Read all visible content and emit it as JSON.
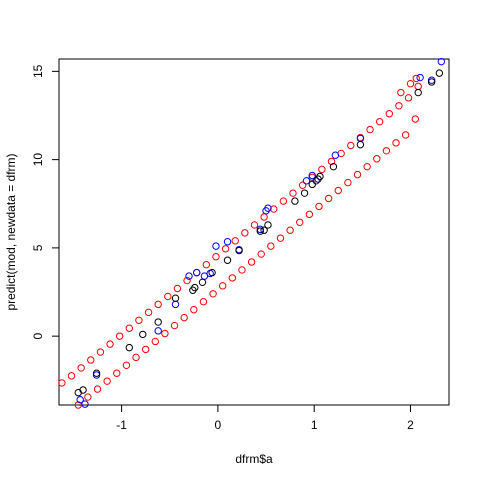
{
  "chart_data": {
    "type": "scatter",
    "title": "",
    "xlabel": "dfrm$a",
    "ylabel": "predict(mod, newdata = dfrm)",
    "xlim": [
      -1.65,
      2.4
    ],
    "ylim": [
      -3.9,
      15.7
    ],
    "xticks": [
      -1,
      0,
      1,
      2
    ],
    "yticks": [
      0,
      5,
      10,
      15
    ],
    "grid": false,
    "marker": "open-circle",
    "series": [
      {
        "color": "#ff0000",
        "points": [
          [
            -1.62,
            -2.65
          ],
          [
            -1.52,
            -2.25
          ],
          [
            -1.42,
            -1.8
          ],
          [
            -1.32,
            -1.35
          ],
          [
            -1.22,
            -0.9
          ],
          [
            -1.12,
            -0.45
          ],
          [
            -1.02,
            0.0
          ],
          [
            -0.92,
            0.45
          ],
          [
            -0.82,
            0.9
          ],
          [
            -0.72,
            1.35
          ],
          [
            -0.62,
            1.8
          ],
          [
            -0.52,
            2.25
          ],
          [
            -0.42,
            2.7
          ],
          [
            -0.32,
            3.15
          ],
          [
            -0.22,
            3.6
          ],
          [
            -0.12,
            4.05
          ],
          [
            -0.02,
            4.5
          ],
          [
            0.08,
            4.95
          ],
          [
            0.18,
            5.4
          ],
          [
            0.28,
            5.85
          ],
          [
            0.38,
            6.3
          ],
          [
            0.48,
            6.75
          ],
          [
            0.58,
            7.2
          ],
          [
            0.68,
            7.65
          ],
          [
            0.78,
            8.1
          ],
          [
            0.88,
            8.55
          ],
          [
            0.98,
            9.0
          ],
          [
            1.08,
            9.45
          ],
          [
            1.18,
            9.9
          ],
          [
            1.28,
            10.35
          ],
          [
            1.38,
            10.8
          ],
          [
            1.48,
            11.25
          ],
          [
            1.58,
            11.7
          ],
          [
            1.68,
            12.15
          ],
          [
            1.78,
            12.6
          ],
          [
            1.88,
            13.05
          ],
          [
            1.98,
            13.5
          ],
          [
            2.08,
            14.15
          ],
          [
            -1.45,
            -3.9
          ],
          [
            -1.35,
            -3.45
          ],
          [
            -1.25,
            -3.0
          ],
          [
            -1.15,
            -2.55
          ],
          [
            -1.05,
            -2.1
          ],
          [
            -0.95,
            -1.65
          ],
          [
            -0.85,
            -1.2
          ],
          [
            -0.75,
            -0.75
          ],
          [
            -0.65,
            -0.3
          ],
          [
            -0.55,
            0.15
          ],
          [
            -0.45,
            0.6
          ],
          [
            -0.35,
            1.05
          ],
          [
            -0.25,
            1.5
          ],
          [
            -0.15,
            1.95
          ],
          [
            -0.05,
            2.4
          ],
          [
            0.05,
            2.85
          ],
          [
            0.15,
            3.3
          ],
          [
            0.25,
            3.75
          ],
          [
            0.35,
            4.2
          ],
          [
            0.45,
            4.65
          ],
          [
            0.55,
            5.1
          ],
          [
            0.65,
            5.55
          ],
          [
            0.75,
            6.0
          ],
          [
            0.85,
            6.45
          ],
          [
            0.95,
            6.9
          ],
          [
            1.05,
            7.35
          ],
          [
            1.15,
            7.8
          ],
          [
            1.25,
            8.25
          ],
          [
            1.35,
            8.7
          ],
          [
            1.45,
            9.15
          ],
          [
            1.55,
            9.6
          ],
          [
            1.65,
            10.05
          ],
          [
            1.75,
            10.5
          ],
          [
            1.85,
            10.95
          ],
          [
            1.95,
            11.4
          ],
          [
            2.05,
            12.3
          ],
          [
            2.06,
            14.6
          ],
          [
            2.0,
            14.3
          ],
          [
            1.9,
            13.8
          ]
        ]
      },
      {
        "color": "#0000ff",
        "points": [
          [
            -1.43,
            -3.6
          ],
          [
            -1.38,
            -3.85
          ],
          [
            -1.26,
            -2.2
          ],
          [
            -0.62,
            0.3
          ],
          [
            -0.44,
            1.8
          ],
          [
            -0.3,
            3.4
          ],
          [
            -0.22,
            3.6
          ],
          [
            -0.14,
            3.4
          ],
          [
            -0.08,
            3.55
          ],
          [
            -0.02,
            5.1
          ],
          [
            0.1,
            5.35
          ],
          [
            0.22,
            4.9
          ],
          [
            0.44,
            6.05
          ],
          [
            0.5,
            7.1
          ],
          [
            0.52,
            7.25
          ],
          [
            0.92,
            8.8
          ],
          [
            0.98,
            9.1
          ],
          [
            1.02,
            8.8
          ],
          [
            1.22,
            10.25
          ],
          [
            1.48,
            11.2
          ],
          [
            2.1,
            14.65
          ],
          [
            2.22,
            14.5
          ],
          [
            2.32,
            15.55
          ]
        ]
      },
      {
        "color": "#000000",
        "points": [
          [
            -1.45,
            -3.2
          ],
          [
            -1.4,
            -3.05
          ],
          [
            -1.26,
            -2.1
          ],
          [
            -0.92,
            -0.65
          ],
          [
            -0.78,
            0.1
          ],
          [
            -0.62,
            0.8
          ],
          [
            -0.44,
            2.15
          ],
          [
            -0.26,
            2.6
          ],
          [
            -0.24,
            2.75
          ],
          [
            -0.16,
            3.05
          ],
          [
            -0.06,
            3.6
          ],
          [
            0.1,
            4.3
          ],
          [
            0.22,
            4.85
          ],
          [
            0.44,
            5.95
          ],
          [
            0.48,
            6.0
          ],
          [
            0.52,
            6.3
          ],
          [
            0.8,
            7.65
          ],
          [
            0.9,
            8.1
          ],
          [
            0.98,
            8.6
          ],
          [
            1.04,
            8.9
          ],
          [
            1.06,
            9.05
          ],
          [
            1.2,
            9.6
          ],
          [
            1.48,
            10.85
          ],
          [
            2.08,
            13.8
          ],
          [
            2.22,
            14.4
          ],
          [
            2.3,
            14.9
          ]
        ]
      }
    ]
  }
}
